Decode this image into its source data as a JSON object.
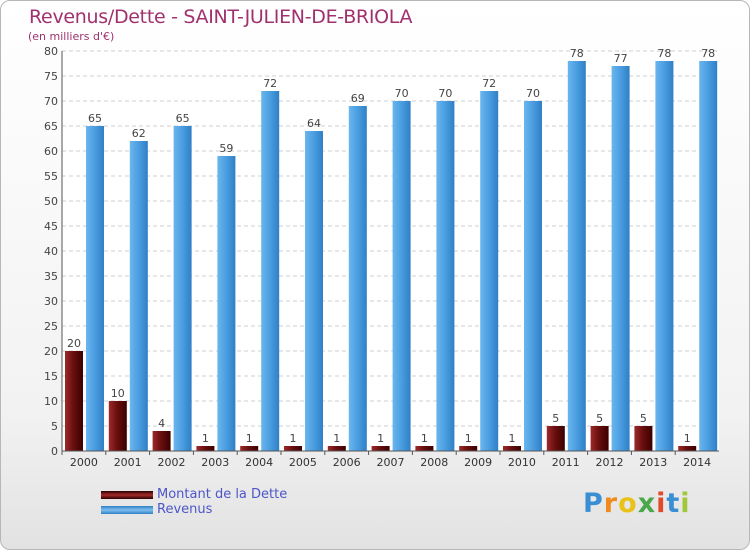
{
  "chart_data": {
    "type": "bar",
    "title": "Revenus/Dette - SAINT-JULIEN-DE-BRIOLA",
    "subtitle": "(en milliers d'€)",
    "categories": [
      "2000",
      "2001",
      "2002",
      "2003",
      "2004",
      "2005",
      "2006",
      "2007",
      "2008",
      "2009",
      "2010",
      "2011",
      "2012",
      "2013",
      "2014"
    ],
    "series": [
      {
        "name": "Montant de la Dette",
        "values": [
          20,
          10,
          4,
          1,
          1,
          1,
          1,
          1,
          1,
          1,
          1,
          5,
          5,
          5,
          1
        ],
        "color": "#8b1a1a"
      },
      {
        "name": "Revenus",
        "values": [
          65,
          62,
          65,
          59,
          72,
          64,
          69,
          70,
          70,
          72,
          70,
          78,
          77,
          78,
          78
        ],
        "color": "#4a9de0"
      }
    ],
    "ylim": [
      0,
      80
    ],
    "ytick_step": 5,
    "grid": true,
    "legend_position": "bottom-left"
  },
  "logo": {
    "text": "Proxiti",
    "colors": [
      "#3a8fd4",
      "#f08a1c",
      "#e8c21a",
      "#4aa84a",
      "#e04a2a",
      "#3a8fd4",
      "#a0c83a"
    ]
  }
}
